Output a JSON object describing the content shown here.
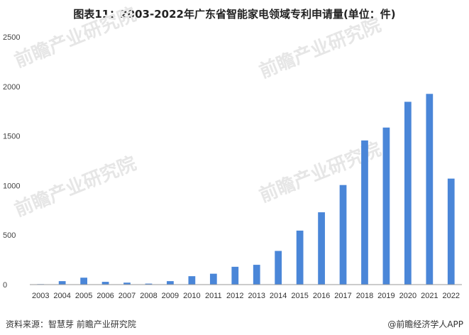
{
  "title": "图表11：2003-2022年广东省智能家电领域专利申请量(单位：件)",
  "source": "资料来源：智慧芽 前瞻产业研究院",
  "brand": "@前瞻经济学人APP",
  "watermark": "前瞻产业研究院",
  "colors": {
    "bar": "#4a86d8",
    "axis": "#999999"
  },
  "chart_data": {
    "type": "bar",
    "title": "图表11：2003-2022年广东省智能家电领域专利申请量(单位：件)",
    "xlabel": "",
    "ylabel": "",
    "ylim": [
      0,
      2500
    ],
    "yticks": [
      0,
      500,
      1000,
      1500,
      2000,
      2500
    ],
    "grid": false,
    "categories": [
      "2003",
      "2004",
      "2005",
      "2006",
      "2007",
      "2008",
      "2009",
      "2010",
      "2011",
      "2012",
      "2013",
      "2014",
      "2015",
      "2016",
      "2017",
      "2018",
      "2019",
      "2020",
      "2021",
      "2022"
    ],
    "values": [
      5,
      35,
      70,
      28,
      20,
      10,
      35,
      85,
      110,
      180,
      200,
      340,
      545,
      730,
      1005,
      1455,
      1585,
      1845,
      1925,
      1070
    ]
  }
}
